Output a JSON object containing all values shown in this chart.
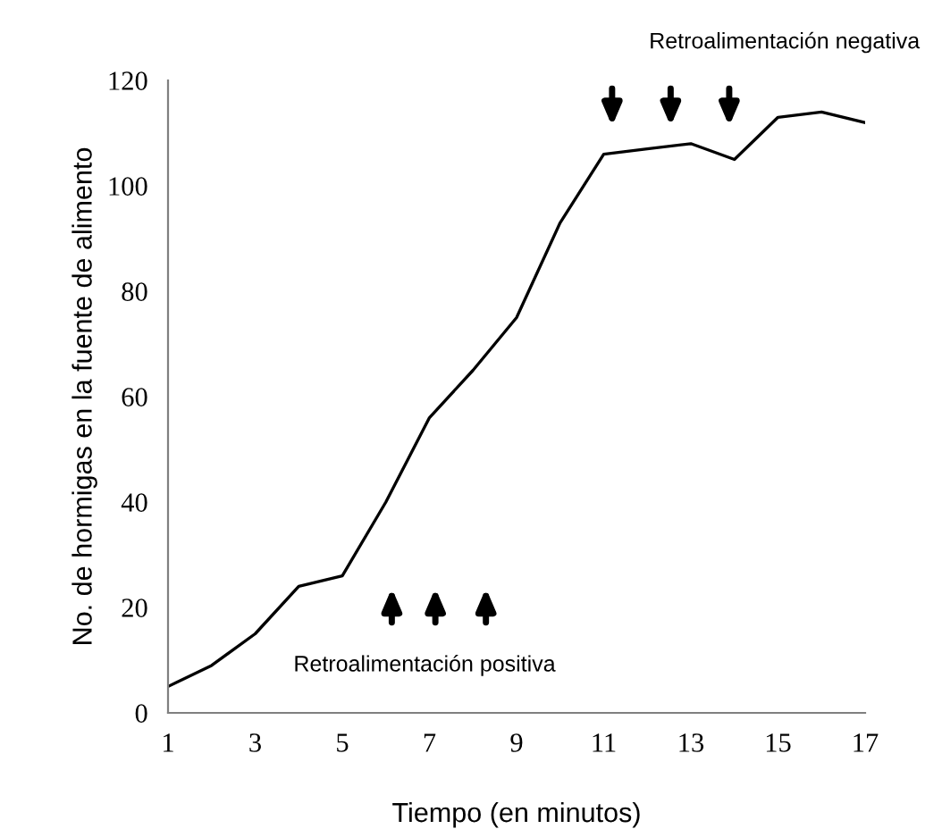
{
  "chart_data": {
    "type": "line",
    "xlabel": "Tiempo (en minutos)",
    "ylabel": "No. de hormigas en la fuente de alimento",
    "x": [
      1,
      2,
      3,
      4,
      5,
      6,
      7,
      8,
      9,
      10,
      11,
      12,
      13,
      14,
      15,
      16,
      17
    ],
    "series": [
      {
        "color": "#000000",
        "values": [
          5,
          9,
          15,
          24,
          26,
          40,
          56,
          65,
          75,
          93,
          106,
          107,
          108,
          105,
          113,
          114,
          112
        ]
      }
    ],
    "xlim": [
      1,
      17
    ],
    "xticks": [
      1,
      3,
      5,
      7,
      9,
      11,
      13,
      15,
      17
    ],
    "ylim": [
      0,
      120
    ],
    "yticks": [
      0,
      20,
      40,
      60,
      80,
      100,
      120
    ],
    "grid": false,
    "legend": false,
    "marker": "none",
    "line_style": "solid",
    "annotations": [
      "Retroalimentación positiva",
      "Retroalimentación negativa"
    ]
  }
}
